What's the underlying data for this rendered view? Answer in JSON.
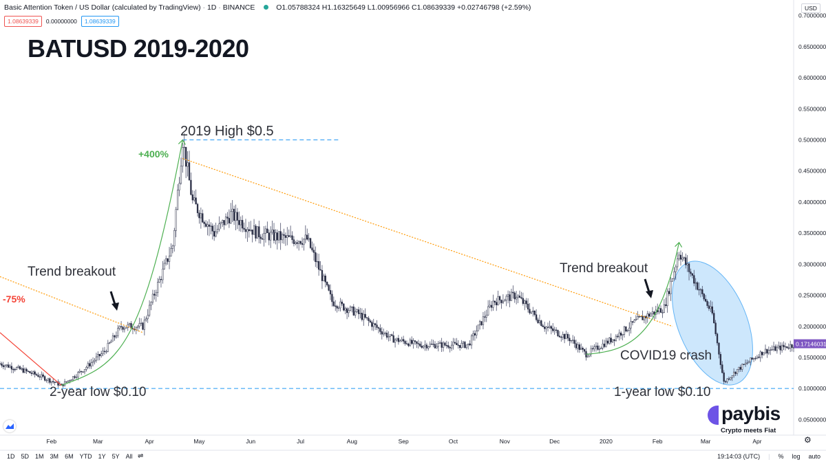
{
  "header": {
    "symbol": "Basic Attention Token / US Dollar (calculated by TradingView)",
    "interval": "1D",
    "exchange": "BINANCE",
    "ohlc": "O1.05788324 H1.16325649 L1.00956966 C1.08639339 +0.02746798 (+2.59%)",
    "sell_price": "1.08639339",
    "spread": "0.00000000",
    "buy_price": "1.08639339",
    "currency": "USD"
  },
  "title": "BATUSD 2019-2020",
  "annotations": {
    "high": "2019 High $0.5",
    "pct_up": "+400%",
    "pct_down": "-75%",
    "trend_left": "Trend breakout",
    "trend_right": "Trend breakout",
    "low_left": "2-year low $0.10",
    "low_right": "1-year low $0.10",
    "covid": "COVID19 crash",
    "last_price": "0.17146031"
  },
  "chart_data": {
    "type": "candlestick",
    "title": "BATUSD 2019-2020",
    "y_ticks": [
      0.05,
      0.1,
      0.15,
      0.2,
      0.25,
      0.3,
      0.35,
      0.4,
      0.45,
      0.5,
      0.55,
      0.6,
      0.65,
      0.7
    ],
    "y_tick_labels": [
      "0.05000000",
      "0.10000000",
      "0.15000000",
      "0.20000000",
      "0.25000000",
      "0.30000000",
      "0.35000000",
      "0.40000000",
      "0.45000000",
      "0.50000000",
      "0.55000000",
      "0.60000000",
      "0.65000000",
      "0.70000000"
    ],
    "ylim": [
      0.025,
      0.725
    ],
    "x_labels": [
      "Feb",
      "Mar",
      "Apr",
      "May",
      "Jun",
      "Jul",
      "Aug",
      "Sep",
      "Oct",
      "Nov",
      "Dec",
      "2020",
      "Feb",
      "Mar",
      "Apr"
    ],
    "x_label_dates": [
      "2019-02-01",
      "2019-03-01",
      "2019-04-01",
      "2019-05-01",
      "2019-06-01",
      "2019-07-01",
      "2019-08-01",
      "2019-09-01",
      "2019-10-01",
      "2019-11-01",
      "2019-12-01",
      "2020-01-01",
      "2020-02-01",
      "2020-03-01",
      "2020-04-01"
    ],
    "x_range": [
      "2019-01-01",
      "2020-04-23"
    ],
    "price_path": [
      [
        "2019-01-01",
        0.14
      ],
      [
        "2019-01-14",
        0.13
      ],
      [
        "2019-01-25",
        0.12
      ],
      [
        "2019-02-07",
        0.105
      ],
      [
        "2019-02-20",
        0.13
      ],
      [
        "2019-03-05",
        0.16
      ],
      [
        "2019-03-15",
        0.2
      ],
      [
        "2019-03-28",
        0.2
      ],
      [
        "2019-04-05",
        0.26
      ],
      [
        "2019-04-15",
        0.33
      ],
      [
        "2019-04-21",
        0.5
      ],
      [
        "2019-04-27",
        0.4
      ],
      [
        "2019-05-10",
        0.35
      ],
      [
        "2019-05-20",
        0.38
      ],
      [
        "2019-06-05",
        0.35
      ],
      [
        "2019-06-25",
        0.34
      ],
      [
        "2019-07-05",
        0.34
      ],
      [
        "2019-07-20",
        0.24
      ],
      [
        "2019-08-05",
        0.22
      ],
      [
        "2019-08-25",
        0.18
      ],
      [
        "2019-09-10",
        0.17
      ],
      [
        "2019-09-25",
        0.17
      ],
      [
        "2019-10-10",
        0.17
      ],
      [
        "2019-10-25",
        0.24
      ],
      [
        "2019-11-08",
        0.25
      ],
      [
        "2019-11-25",
        0.2
      ],
      [
        "2019-12-10",
        0.18
      ],
      [
        "2019-12-20",
        0.155
      ],
      [
        "2020-01-05",
        0.18
      ],
      [
        "2020-01-20",
        0.21
      ],
      [
        "2020-02-05",
        0.23
      ],
      [
        "2020-02-14",
        0.32
      ],
      [
        "2020-02-22",
        0.28
      ],
      [
        "2020-03-05",
        0.22
      ],
      [
        "2020-03-12",
        0.11
      ],
      [
        "2020-03-20",
        0.13
      ],
      [
        "2020-04-05",
        0.16
      ],
      [
        "2020-04-23",
        0.17
      ]
    ],
    "high_2019": 0.5,
    "low_2year": 0.1,
    "low_1year": 0.1,
    "last_price": 0.17146031,
    "grid": false
  },
  "bottom_bar": {
    "timeframes": [
      "1D",
      "5D",
      "1M",
      "3M",
      "6M",
      "YTD",
      "1Y",
      "5Y",
      "All"
    ],
    "time": "19:14:03 (UTC)",
    "pct": "%",
    "log": "log",
    "auto": "auto"
  },
  "branding": {
    "name": "paybis",
    "tagline": "Crypto meets Fiat"
  },
  "colors": {
    "up": "#131722",
    "down": "#131722",
    "trendline": "#ff9800",
    "green_curve": "#4caf50",
    "red_line": "#f44336",
    "dashed": "#2196f3",
    "covid_fill": "#90caf9",
    "last_price_bg": "#7e57c2"
  }
}
